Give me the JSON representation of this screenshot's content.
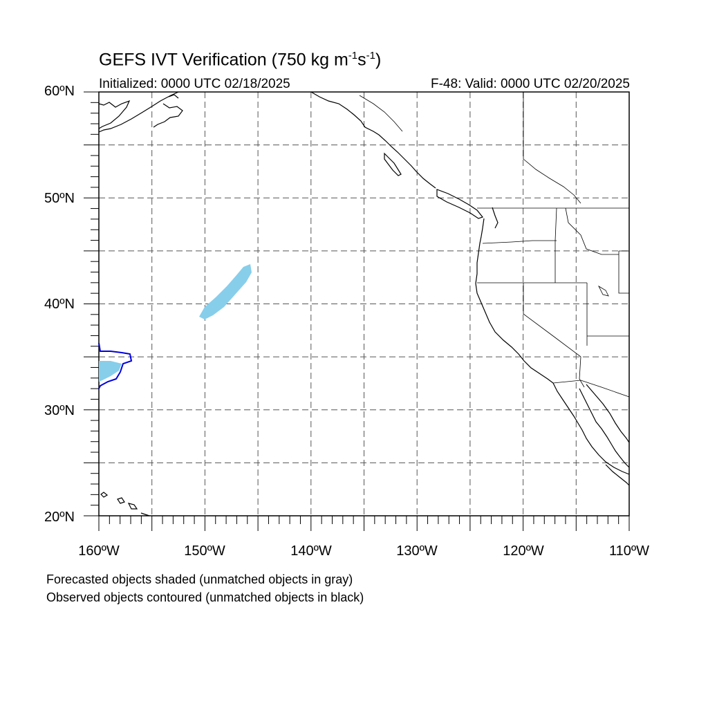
{
  "title": {
    "main": "GEFS IVT Verification (750 kg m",
    "exp1": "-1",
    "mid": "s",
    "exp2": "-1",
    "close": ")"
  },
  "subtitle": {
    "initialized": "Initialized: 0000 UTC 02/18/2025",
    "valid": "F-48: Valid: 0000 UTC 02/20/2025"
  },
  "map": {
    "lon_range": [
      -160,
      -110
    ],
    "lat_range": [
      20,
      60
    ],
    "grid_spacing_deg": 5,
    "grid_style": "dashed",
    "lat_labels": [
      "60ºN",
      "50ºN",
      "40ºN",
      "30ºN",
      "20ºN"
    ],
    "lon_labels": [
      "160ºW",
      "150ºW",
      "140ºW",
      "130ºW",
      "120ºW",
      "110ºW"
    ],
    "colors": {
      "forecast_fill": "#87ceeb",
      "observed_contour": "#0000dd",
      "coastline": "#000000",
      "grid": "#555555"
    }
  },
  "notes": {
    "forecast": "Forecasted objects shaded (unmatched objects in gray)",
    "observed": "Observed objects contoured (unmatched objects in black)"
  }
}
